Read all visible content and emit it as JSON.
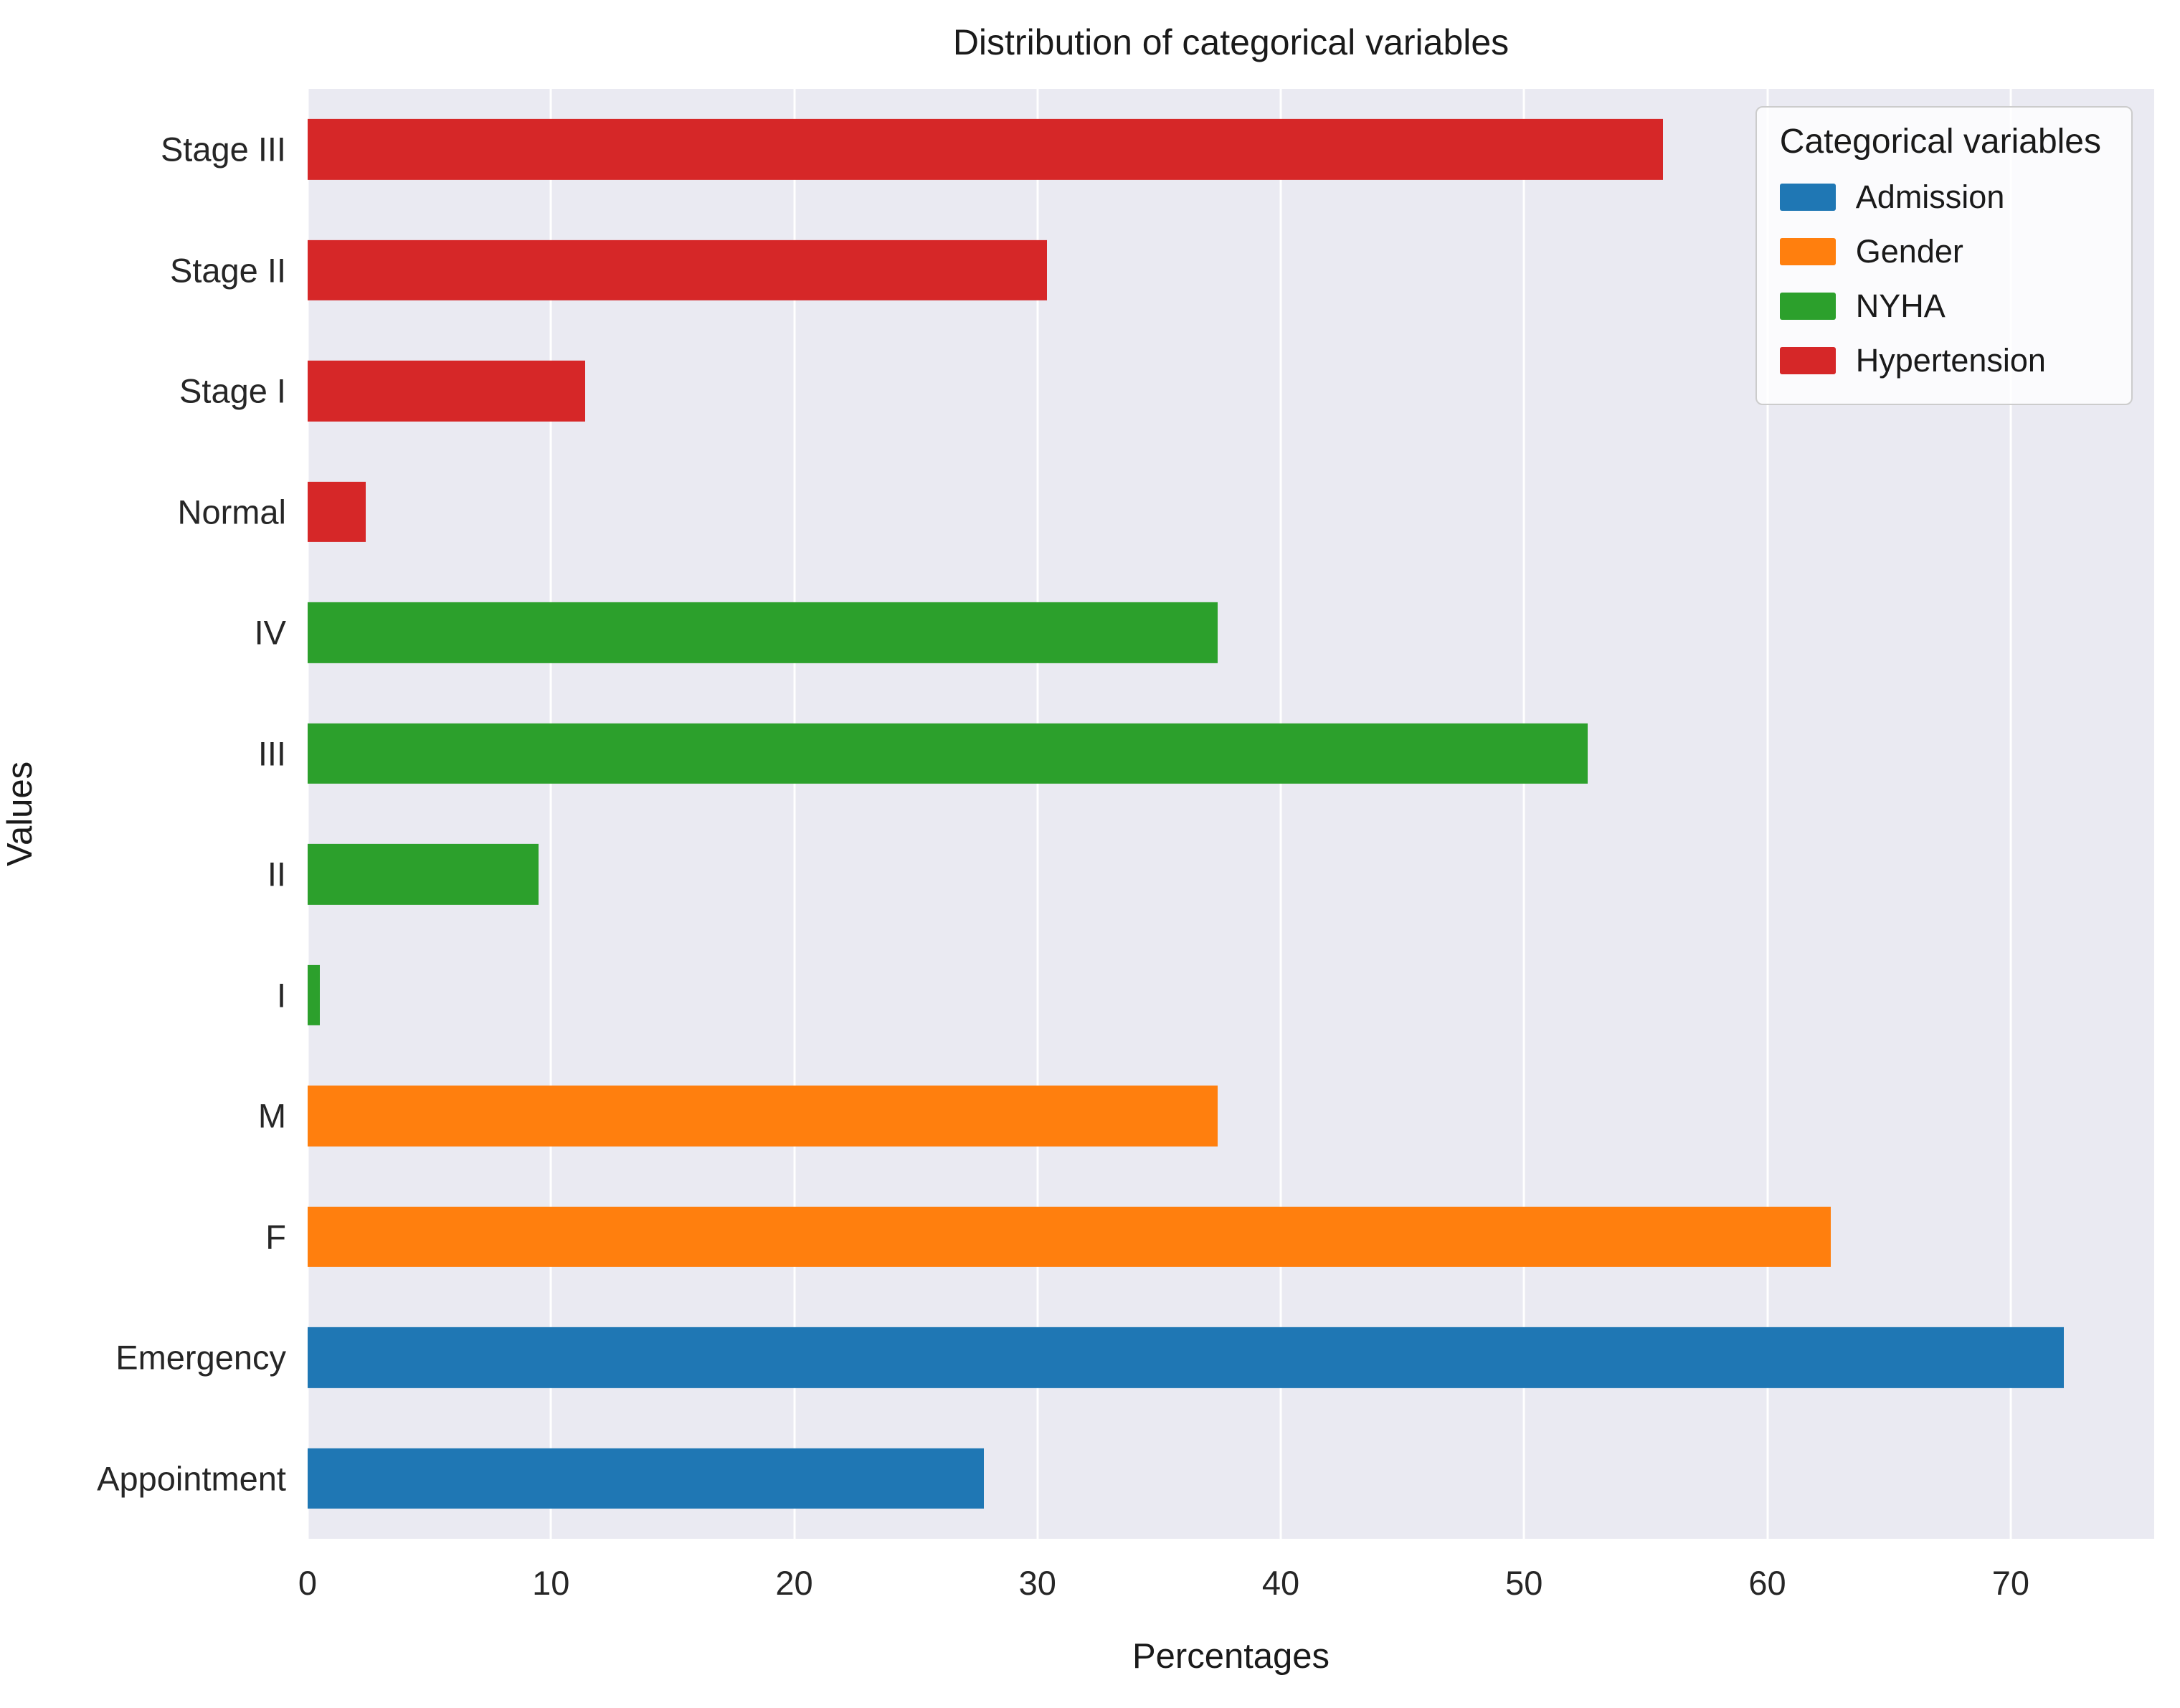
{
  "chart_data": {
    "type": "bar",
    "orientation": "horizontal",
    "title": "Distribution of categorical variables",
    "xlabel": "Percentages",
    "ylabel": "Values",
    "xlim": [
      0,
      75.9
    ],
    "xticks": [
      0,
      10,
      20,
      30,
      40,
      50,
      60,
      70
    ],
    "grid": true,
    "plot_bg": "#eaeaf2",
    "grid_color": "#ffffff",
    "legend": {
      "title": "Categorical variables",
      "position": "upper right",
      "entries": [
        {
          "label": "Admission",
          "color": "#1f77b4"
        },
        {
          "label": "Gender",
          "color": "#ff7f0e"
        },
        {
          "label": "NYHA",
          "color": "#2ca02c"
        },
        {
          "label": "Hypertension",
          "color": "#d62728"
        }
      ]
    },
    "bars": [
      {
        "category": "Stage III",
        "series": "Hypertension",
        "value": 55.7,
        "color": "#d62728"
      },
      {
        "category": "Stage II",
        "series": "Hypertension",
        "value": 30.4,
        "color": "#d62728"
      },
      {
        "category": "Stage I",
        "series": "Hypertension",
        "value": 11.4,
        "color": "#d62728"
      },
      {
        "category": "Normal",
        "series": "Hypertension",
        "value": 2.4,
        "color": "#d62728"
      },
      {
        "category": "IV",
        "series": "NYHA",
        "value": 37.4,
        "color": "#2ca02c"
      },
      {
        "category": "III",
        "series": "NYHA",
        "value": 52.6,
        "color": "#2ca02c"
      },
      {
        "category": "II",
        "series": "NYHA",
        "value": 9.5,
        "color": "#2ca02c"
      },
      {
        "category": "I",
        "series": "NYHA",
        "value": 0.5,
        "color": "#2ca02c"
      },
      {
        "category": "M",
        "series": "Gender",
        "value": 37.4,
        "color": "#ff7f0e"
      },
      {
        "category": "F",
        "series": "Gender",
        "value": 62.6,
        "color": "#ff7f0e"
      },
      {
        "category": "Emergency",
        "series": "Admission",
        "value": 72.2,
        "color": "#1f77b4"
      },
      {
        "category": "Appointment",
        "series": "Admission",
        "value": 27.8,
        "color": "#1f77b4"
      }
    ]
  }
}
